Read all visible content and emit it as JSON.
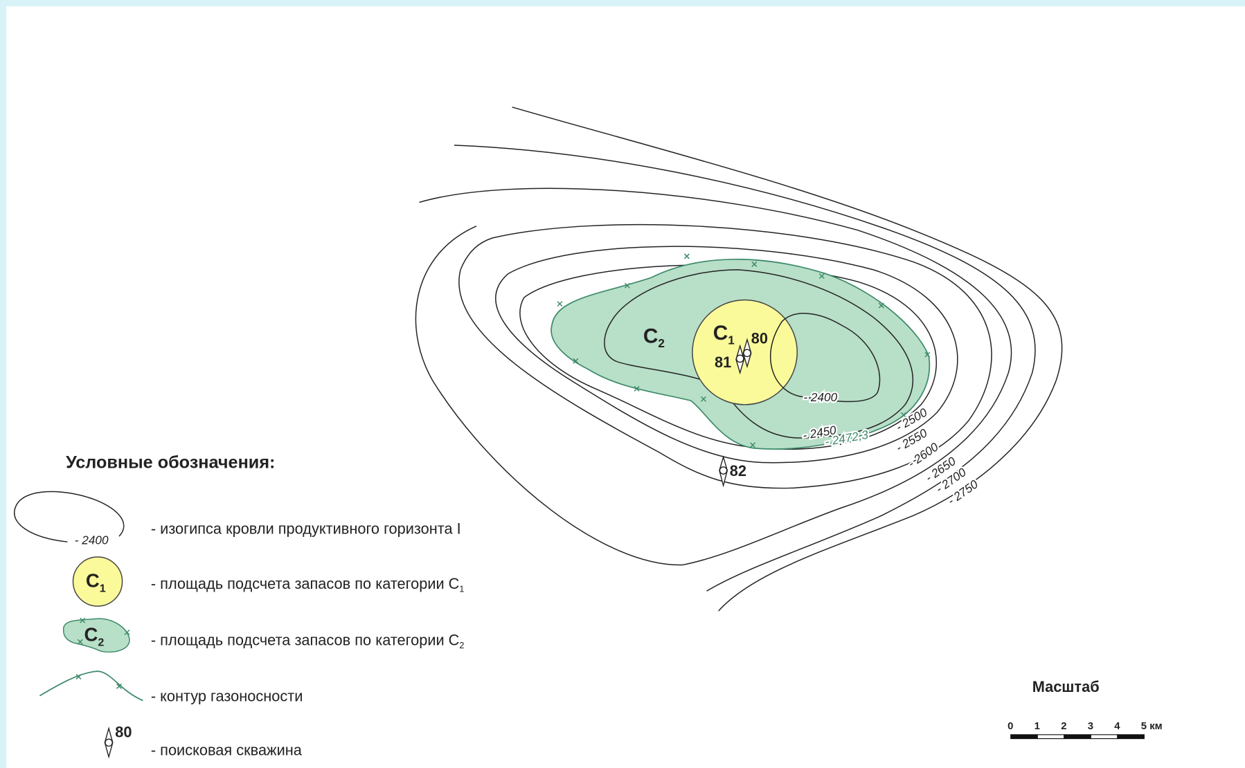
{
  "map": {
    "contour_labels": [
      "- 2400",
      "- 2450",
      "- 2472,3",
      "- 2500",
      "- 2550",
      "- 2600",
      "- 2650",
      "- 2700",
      "- 2750"
    ],
    "area_c1": {
      "letter": "C",
      "sub": "1"
    },
    "area_c2": {
      "letter": "C",
      "sub": "2"
    },
    "wells": [
      "80",
      "81",
      "82"
    ]
  },
  "legend": {
    "title": "Условные обозначения:",
    "items": [
      {
        "sample": "- 2400",
        "text": "- изогипса кровли продуктивного горизонта I"
      },
      {
        "sample": {
          "letter": "C",
          "sub": "1"
        },
        "text": "- площадь подсчета запасов по категории C",
        "text_sub": "1"
      },
      {
        "sample": {
          "letter": "C",
          "sub": "2"
        },
        "text": "- площадь подсчета запасов по категории C",
        "text_sub": "2"
      },
      {
        "text": "- контур газоносности"
      },
      {
        "sample": "80",
        "text": "- поисковая скважина"
      }
    ]
  },
  "scale": {
    "title": "Масштаб",
    "ticks": [
      "0",
      "1",
      "2",
      "3",
      "4",
      "5 км"
    ]
  }
}
